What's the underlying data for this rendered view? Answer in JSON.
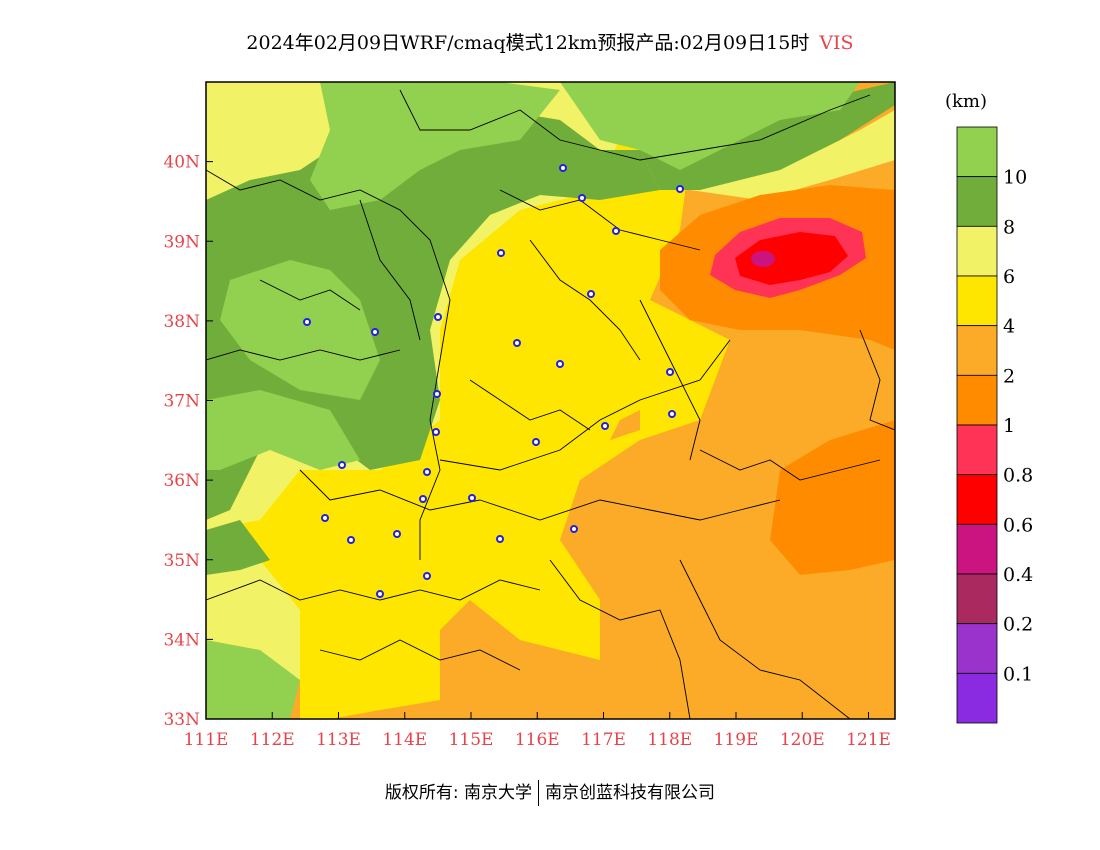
{
  "title": {
    "main": "2024年02月09日WRF/cmaq模式12km预报产品:02月09日15时",
    "variable": "VIS"
  },
  "map": {
    "lon_range": [
      111,
      121.4
    ],
    "lat_range": [
      33,
      41
    ],
    "x_ticks": [
      {
        "value": 111,
        "label": "111E"
      },
      {
        "value": 112,
        "label": "112E"
      },
      {
        "value": 113,
        "label": "113E"
      },
      {
        "value": 114,
        "label": "114E"
      },
      {
        "value": 115,
        "label": "115E"
      },
      {
        "value": 116,
        "label": "116E"
      },
      {
        "value": 117,
        "label": "117E"
      },
      {
        "value": 118,
        "label": "118E"
      },
      {
        "value": 119,
        "label": "119E"
      },
      {
        "value": 120,
        "label": "120E"
      },
      {
        "value": 121,
        "label": "121E"
      }
    ],
    "y_ticks": [
      {
        "value": 33,
        "label": "33N"
      },
      {
        "value": 34,
        "label": "34N"
      },
      {
        "value": 35,
        "label": "35N"
      },
      {
        "value": 36,
        "label": "36N"
      },
      {
        "value": 37,
        "label": "37N"
      },
      {
        "value": 38,
        "label": "38N"
      },
      {
        "value": 39,
        "label": "39N"
      },
      {
        "value": 40,
        "label": "40N"
      }
    ]
  },
  "legend": {
    "unit": "(km)",
    "colors": [
      "#92d050",
      "#70ad3a",
      "#f2f266",
      "#ffe600",
      "#fbab28",
      "#ff8c00",
      "#ff3355",
      "#ff0000",
      "#cc1480",
      "#aa2a60",
      "#9933cc",
      "#8a2be2"
    ],
    "labels": [
      "10",
      "8",
      "6",
      "4",
      "2",
      "1",
      "0.8",
      "0.6",
      "0.4",
      "0.2",
      "0.1"
    ]
  },
  "footer": {
    "copyright": "版权所有: 南京大学",
    "company": "南京创蓝科技有限公司"
  }
}
